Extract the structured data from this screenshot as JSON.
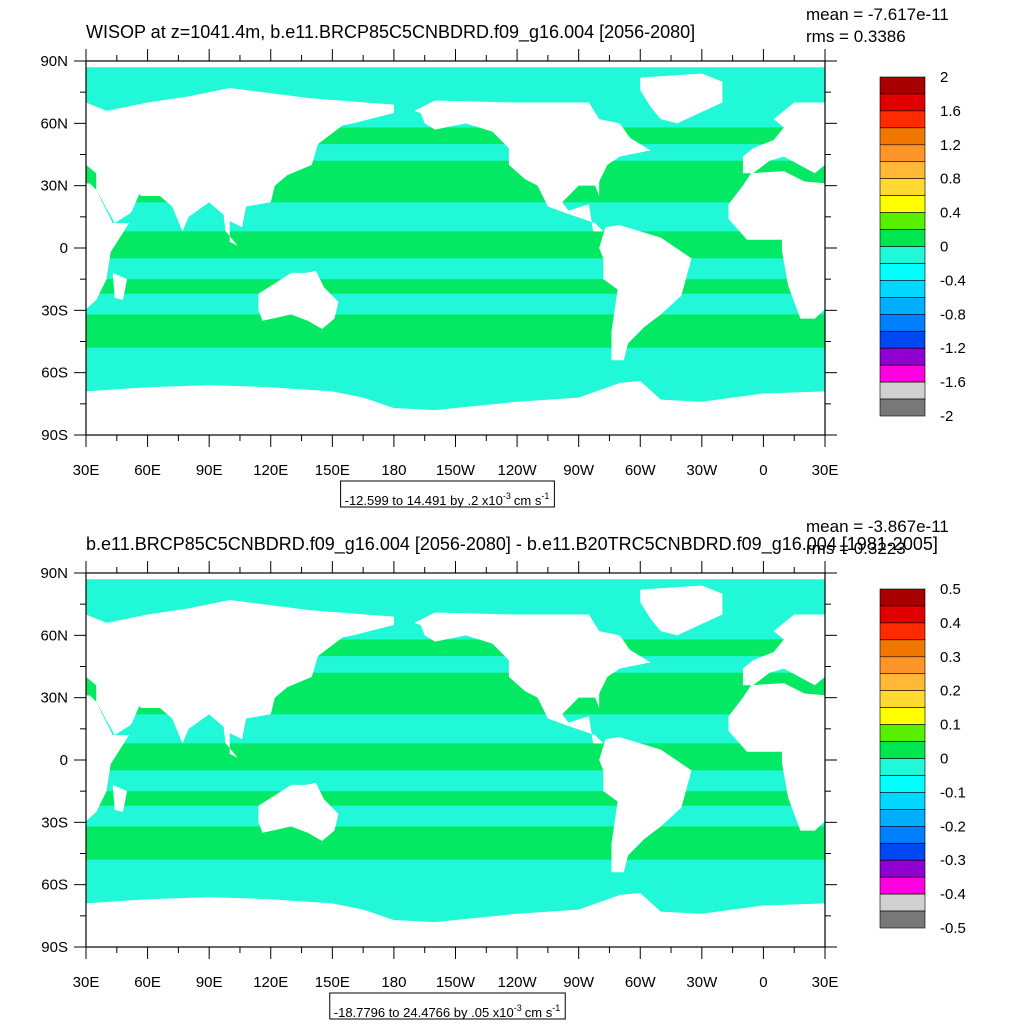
{
  "panels": [
    {
      "title": "WISOP at z=1041.4m, b.e11.BRCP85C5CNBDRD.f09_g16.004 [2056-2080]",
      "mean": "mean = -7.617e-11",
      "rms": "rms = 0.3386",
      "lat_labels": [
        "90N",
        "60N",
        "30N",
        "0",
        "30S",
        "60S",
        "90S"
      ],
      "lon_labels": [
        "30E",
        "60E",
        "90E",
        "120E",
        "150E",
        "180",
        "150W",
        "120W",
        "90W",
        "60W",
        "30W",
        "0",
        "30E"
      ],
      "colorbar": {
        "levels": [
          2,
          1.6,
          1.2,
          0.8,
          0.4,
          0,
          -0.4,
          -0.8,
          -1.2,
          -1.6,
          -2
        ],
        "colors": [
          "#a80000",
          "#e00000",
          "#ff2a00",
          "#f07800",
          "#ff9428",
          "#ffb838",
          "#ffd830",
          "#ffff00",
          "#58f000",
          "#00e650",
          "#20f8d8",
          "#00ffff",
          "#00d8ff",
          "#00b0ff",
          "#0080ff",
          "#0048f0",
          "#9000d0",
          "#ff00e0",
          "#d0d0d0",
          "#787878"
        ]
      },
      "info": {
        "text": "-12.599 to 14.491 by .2 x10",
        "exp": "-3",
        "unit": "cm s",
        "unit_exp": "-1"
      }
    },
    {
      "title": "b.e11.BRCP85C5CNBDRD.f09_g16.004 [2056-2080] - b.e11.B20TRC5CNBDRD.f09_g16.004 [1981-2005]",
      "mean": "mean = -3.867e-11",
      "rms": "rms = 0.3223",
      "lat_labels": [
        "90N",
        "60N",
        "30N",
        "0",
        "30S",
        "60S",
        "90S"
      ],
      "lon_labels": [
        "30E",
        "60E",
        "90E",
        "120E",
        "150E",
        "180",
        "150W",
        "120W",
        "90W",
        "60W",
        "30W",
        "0",
        "30E"
      ],
      "colorbar": {
        "levels": [
          0.5,
          0.4,
          0.3,
          0.2,
          0.1,
          0,
          -0.1,
          -0.2,
          -0.3,
          -0.4,
          -0.5
        ],
        "colors": [
          "#a80000",
          "#e00000",
          "#ff2a00",
          "#f07800",
          "#ff9428",
          "#ffb838",
          "#ffd830",
          "#ffff00",
          "#58f000",
          "#00e650",
          "#20f8d8",
          "#00ffff",
          "#00d8ff",
          "#00b0ff",
          "#0080ff",
          "#0048f0",
          "#9000d0",
          "#ff00e0",
          "#d0d0d0",
          "#787878"
        ]
      },
      "info": {
        "text": "-18.7796 to 24.4766 by .05 x10",
        "exp": "-3",
        "unit": "cm s",
        "unit_exp": "-1"
      }
    }
  ]
}
